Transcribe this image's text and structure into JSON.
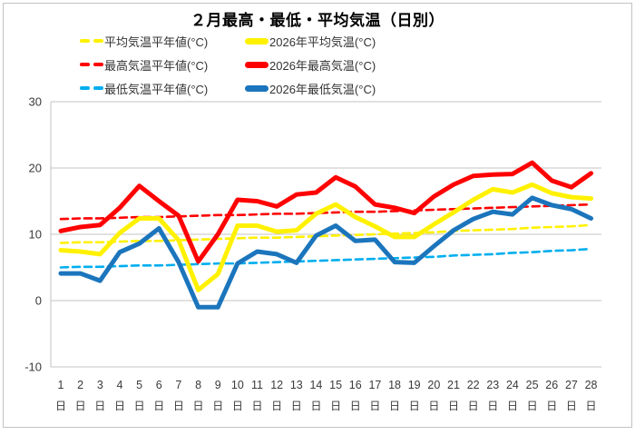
{
  "title": "２月最高・最低・平均気温（日別）",
  "colors": {
    "yellow": "#FFF100",
    "red": "#FF0000",
    "blue_solid": "#1B75BC",
    "blue_dashed": "#00AEEF",
    "grid": "#C3C3C3",
    "axis_text": "#3a3a3a"
  },
  "legend": {
    "items": [
      {
        "key": "avg-normal",
        "label": "平均気温平年値(°C)",
        "style": "dashed",
        "color": "#FFF100"
      },
      {
        "key": "avg-2026",
        "label": "2026年平均気温(°C)",
        "style": "solid",
        "color": "#FFF100"
      },
      {
        "key": "high-normal",
        "label": "最高気温平年値(°C)",
        "style": "dashed",
        "color": "#FF0000"
      },
      {
        "key": "high-2026",
        "label": "2026年最高気温(°C)",
        "style": "solid",
        "color": "#FF0000"
      },
      {
        "key": "low-normal",
        "label": "最低気温平年値(°C)",
        "style": "dashed",
        "color": "#00AEEF"
      },
      {
        "key": "low-2026",
        "label": "2026年最低気温(°C)",
        "style": "solid",
        "color": "#1B75BC"
      }
    ]
  },
  "chart_data": {
    "type": "line",
    "title": "２月最高・最低・平均気温（日別）",
    "categories": [
      1,
      2,
      3,
      4,
      5,
      6,
      7,
      8,
      9,
      10,
      11,
      12,
      13,
      14,
      15,
      16,
      17,
      18,
      19,
      20,
      21,
      22,
      23,
      24,
      25,
      26,
      27,
      28
    ],
    "x_tick_suffix": "日",
    "ylim": [
      -10,
      30
    ],
    "yticks": [
      30,
      20,
      10,
      0,
      -10
    ],
    "grid": true,
    "legend_position": "top",
    "series": [
      {
        "key": "avg-normal",
        "name": "平均気温平年値(°C)",
        "style": "dashed",
        "color": "#FFF100",
        "values": [
          8.7,
          8.8,
          8.8,
          8.9,
          9.0,
          9.0,
          9.1,
          9.2,
          9.3,
          9.4,
          9.5,
          9.5,
          9.6,
          9.7,
          9.8,
          9.9,
          10.0,
          10.1,
          10.2,
          10.3,
          10.5,
          10.6,
          10.7,
          10.8,
          11.0,
          11.1,
          11.2,
          11.4
        ]
      },
      {
        "key": "high-normal",
        "name": "最高気温平年値(°C)",
        "style": "dashed",
        "color": "#FF0000",
        "values": [
          12.3,
          12.4,
          12.4,
          12.5,
          12.6,
          12.6,
          12.7,
          12.8,
          12.9,
          12.9,
          13.0,
          13.1,
          13.1,
          13.2,
          13.3,
          13.4,
          13.4,
          13.5,
          13.6,
          13.7,
          13.8,
          13.9,
          14.0,
          14.1,
          14.2,
          14.3,
          14.4,
          14.5
        ]
      },
      {
        "key": "low-normal",
        "name": "最低気温平年値(°C)",
        "style": "dashed",
        "color": "#00AEEF",
        "values": [
          5.0,
          5.1,
          5.1,
          5.2,
          5.3,
          5.3,
          5.4,
          5.5,
          5.6,
          5.6,
          5.7,
          5.8,
          5.9,
          6.0,
          6.1,
          6.2,
          6.3,
          6.4,
          6.5,
          6.6,
          6.8,
          6.9,
          7.0,
          7.2,
          7.3,
          7.5,
          7.6,
          7.8
        ]
      },
      {
        "key": "low-2026",
        "name": "2026年最低気温(°C)",
        "style": "solid",
        "color": "#1B75BC",
        "values": [
          4.1,
          4.1,
          3.0,
          7.3,
          8.6,
          10.9,
          5.8,
          -1.0,
          -1.0,
          5.6,
          7.4,
          7.0,
          5.7,
          9.8,
          11.3,
          9.0,
          9.2,
          5.8,
          5.7,
          8.2,
          10.6,
          12.3,
          13.4,
          13.0,
          15.5,
          14.4,
          13.8,
          12.4
        ]
      },
      {
        "key": "avg-2026",
        "name": "2026年平均気温(°C)",
        "style": "solid",
        "color": "#FFF100",
        "values": [
          7.6,
          7.4,
          7.0,
          10.2,
          12.4,
          12.4,
          9.1,
          1.6,
          4.0,
          11.3,
          11.3,
          10.4,
          10.6,
          13.1,
          14.5,
          12.6,
          11.2,
          9.6,
          9.6,
          11.5,
          13.3,
          15.2,
          16.8,
          16.3,
          17.5,
          16.2,
          15.6,
          15.4
        ]
      },
      {
        "key": "high-2026",
        "name": "2026年最高気温(°C)",
        "style": "solid",
        "color": "#FF0000",
        "values": [
          10.5,
          11.1,
          11.4,
          14.0,
          17.3,
          15.0,
          12.8,
          5.9,
          10.0,
          15.2,
          15.0,
          14.2,
          16.0,
          16.3,
          18.6,
          17.2,
          14.5,
          14.0,
          13.2,
          15.7,
          17.5,
          18.8,
          19.0,
          19.1,
          20.8,
          18.1,
          17.1,
          19.2
        ]
      }
    ]
  }
}
